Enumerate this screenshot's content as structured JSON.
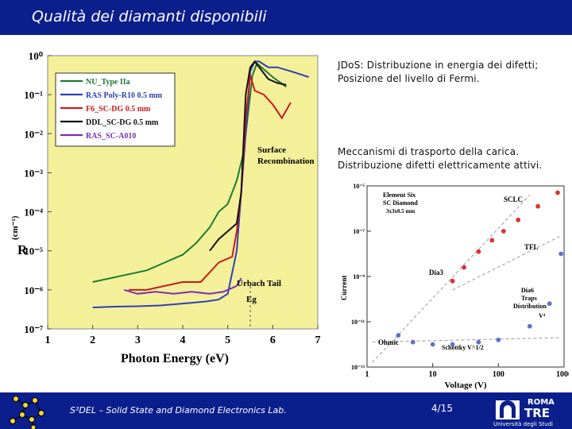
{
  "header": {
    "title": "Qualità dei diamanti disponibili"
  },
  "captions": {
    "jdos": "JDoS: Distribuzione in energia dei difetti; Posizione del livello di Fermi.",
    "transport": "Meccanismi di trasporto della carica. Distribuzione difetti elettricamente attivi."
  },
  "footer": {
    "lab": "S²DEL – Solid State and Diamond Electronics Lab.",
    "page": "4/15",
    "uni_top": "ROMA",
    "uni_main": "TRE",
    "uni_sub": "Università degli Studi"
  },
  "chart_data": [
    {
      "type": "line",
      "background": "#f4f09a",
      "xlabel": "Photon Energy (eV)",
      "ylabel": "R",
      "ylabel_extra": "(cm⁻¹)",
      "x_ticks": [
        "1",
        "2",
        "3",
        "4",
        "5",
        "6",
        "7"
      ],
      "y_ticks": [
        "10⁰",
        "10⁻¹",
        "10⁻²",
        "10⁻³",
        "10⁻⁴",
        "10⁻⁵",
        "10⁻⁶",
        "10⁻⁷"
      ],
      "xlim": [
        1,
        7
      ],
      "ylim_log10": [
        -7,
        0
      ],
      "legend_position": "top-left",
      "annotations": [
        "Surface Recombination",
        "Urbach Tail",
        "Eg"
      ],
      "series": [
        {
          "name": "NU_Type IIa",
          "color": "#1e7a32",
          "x": [
            2.0,
            2.4,
            2.8,
            3.2,
            3.6,
            4.0,
            4.3,
            4.6,
            4.8,
            5.0,
            5.2,
            5.35,
            5.45,
            5.55,
            5.65,
            5.8,
            6.0,
            6.3
          ],
          "y": [
            -5.8,
            -5.7,
            -5.6,
            -5.5,
            -5.3,
            -5.1,
            -4.8,
            -4.4,
            -4.0,
            -3.8,
            -3.2,
            -2.5,
            -1.5,
            -0.5,
            -0.2,
            -0.35,
            -0.55,
            -0.8
          ]
        },
        {
          "name": "RAS Poly-R10 0.5 mm",
          "color": "#2f3fb2",
          "x": [
            2.0,
            2.5,
            3.0,
            3.5,
            4.0,
            4.5,
            4.8,
            5.0,
            5.2,
            5.4,
            5.5,
            5.6,
            5.7,
            5.9,
            6.1,
            6.4,
            6.8
          ],
          "y": [
            -6.45,
            -6.43,
            -6.42,
            -6.4,
            -6.35,
            -6.3,
            -6.25,
            -6.1,
            -5.0,
            -2.0,
            -0.4,
            -0.15,
            -0.15,
            -0.3,
            -0.3,
            -0.4,
            -0.55
          ]
        },
        {
          "name": "F6_SC-DG 0.5 mm",
          "color": "#c41e1e",
          "x": [
            2.8,
            3.2,
            3.6,
            4.0,
            4.4,
            4.8,
            5.0,
            5.1,
            5.2,
            5.3,
            5.4,
            5.5,
            5.6,
            5.8,
            6.0,
            6.2,
            6.4
          ],
          "y": [
            -6.0,
            -6.0,
            -5.9,
            -5.8,
            -5.8,
            -5.3,
            -5.2,
            -5.15,
            -4.5,
            -3.5,
            -1.6,
            -0.5,
            -0.9,
            -1.0,
            -1.25,
            -1.6,
            -1.2
          ]
        },
        {
          "name": "DDL_SC-DG 0.5 mm",
          "color": "#111111",
          "x": [
            4.6,
            4.8,
            5.0,
            5.1,
            5.2,
            5.3,
            5.4,
            5.5,
            5.6,
            5.7,
            5.9,
            6.1,
            6.3
          ],
          "y": [
            -5.0,
            -4.7,
            -4.5,
            -4.4,
            -4.3,
            -3.5,
            -1.0,
            -0.3,
            -0.15,
            -0.3,
            -0.6,
            -0.7,
            -0.75
          ]
        },
        {
          "name": "RAS_SC-A010",
          "color": "#7a2fb2",
          "x": [
            2.7,
            3.0,
            3.4,
            3.8,
            4.2,
            4.6,
            4.9,
            5.0,
            5.1,
            5.2,
            5.3
          ],
          "y": [
            -6.0,
            -6.1,
            -6.05,
            -6.1,
            -6.05,
            -6.1,
            -6.05,
            -6.0,
            -5.95,
            -5.9,
            -5.7
          ]
        }
      ]
    },
    {
      "type": "scatter",
      "xlabel": "Voltage (V)",
      "ylabel": "Current",
      "xscale": "log",
      "yscale": "log",
      "x_ticks": [
        "1",
        "10",
        "100",
        "1000"
      ],
      "y_ticks": [
        "10⁻⁵",
        "10⁻⁷",
        "10⁻⁹",
        "10⁻¹¹",
        "10⁻¹³"
      ],
      "xlim_log10": [
        0,
        3
      ],
      "ylim_log10": [
        -13,
        -5
      ],
      "annotations": [
        "Element Six SC Diamond 3x3x0.5 mm",
        "SCLC",
        "TFL",
        "Dia3",
        "Dia6 Traps Distribution",
        "V⁴",
        "Ohmic",
        "Schottky V^1/2"
      ],
      "series": [
        {
          "name": "Dia3",
          "color": "#d8352b",
          "x": [
            20,
            30,
            50,
            80,
            120,
            200,
            400,
            800
          ],
          "y": [
            -9.2,
            -8.6,
            -7.9,
            -7.4,
            -7.0,
            -6.5,
            -5.9,
            -5.3
          ]
        },
        {
          "name": "Dia6",
          "color": "#5b74c9",
          "x": [
            3,
            5,
            10,
            20,
            50,
            100,
            300,
            600,
            900
          ],
          "y": [
            -11.6,
            -11.9,
            -12.0,
            -12.0,
            -11.9,
            -11.8,
            -11.2,
            -10.2,
            -8.0
          ]
        }
      ]
    }
  ]
}
